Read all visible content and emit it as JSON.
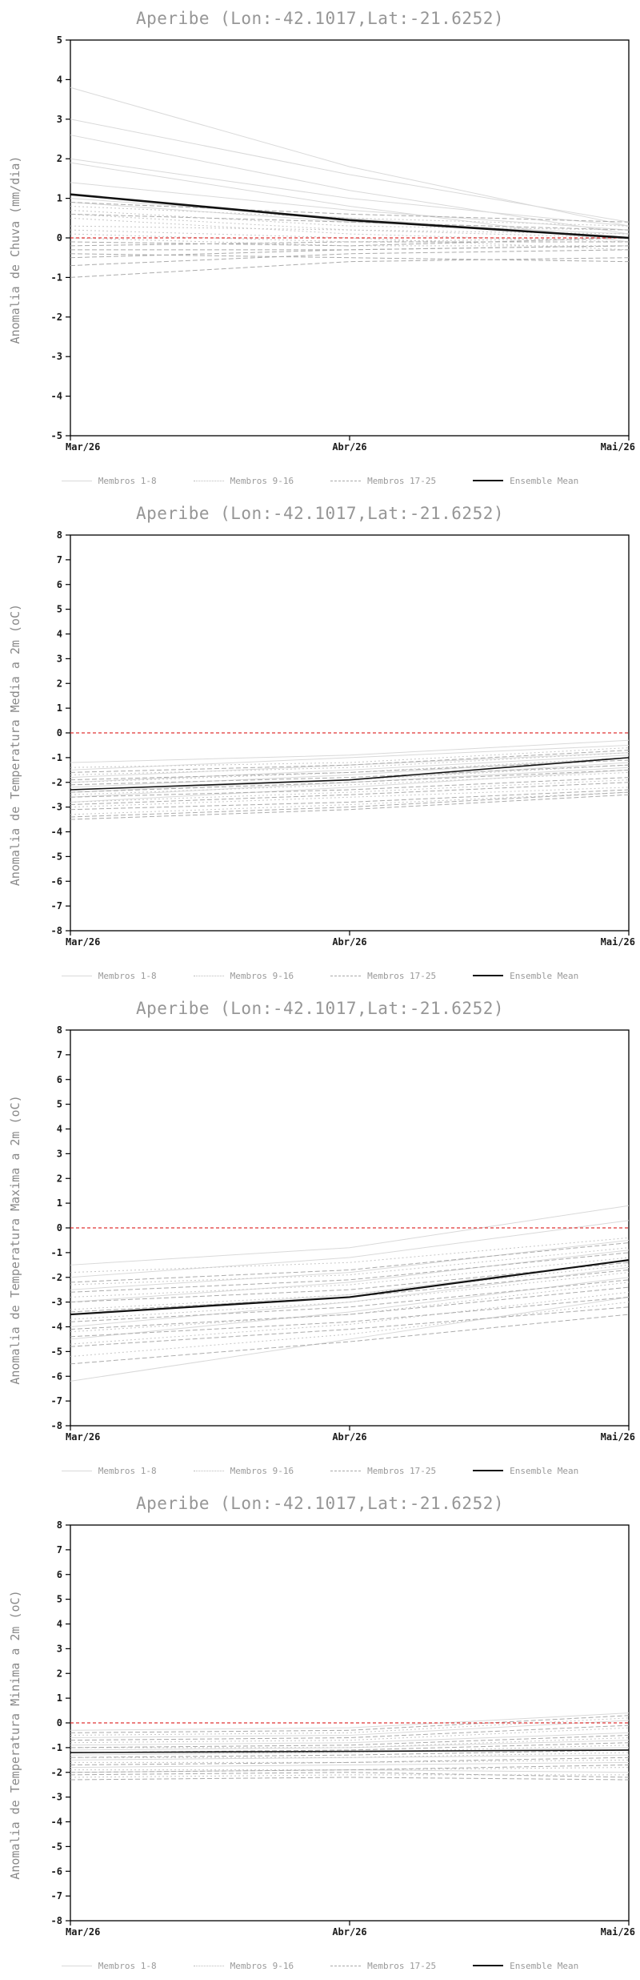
{
  "page": {
    "background": "#ffffff"
  },
  "legend": {
    "items": [
      {
        "label": "Membros 1-8",
        "style": "g1"
      },
      {
        "label": "Membros 9-16",
        "style": "g2"
      },
      {
        "label": "Membros 17-25",
        "style": "g3"
      },
      {
        "label": "Ensemble Mean",
        "style": "mean"
      }
    ]
  },
  "styles": {
    "g1": {
      "color": "#d9d9d9",
      "dash": "",
      "width": 1
    },
    "g2": {
      "color": "#c6c6c6",
      "dash": "2 3",
      "width": 1
    },
    "g3": {
      "color": "#ababab",
      "dash": "6 3",
      "width": 1
    },
    "mean": {
      "color": "#111111"
    },
    "zero": {
      "color": "#e03434",
      "dash": "4 3",
      "width": 1.3
    },
    "frame": "#000000",
    "title_color": "#969696",
    "ylabel_color": "#8a8a8a",
    "tick_color": "#1a1a1a",
    "legend_text": "#9a9a9a"
  },
  "chart_data": [
    {
      "type": "line",
      "title": "Aperibe (Lon:-42.1017,Lat:-21.6252)",
      "ylabel": "Anomalia de Chuva (mm/dia)",
      "ylim": [
        -5,
        5
      ],
      "yticks": [
        5,
        4,
        3,
        2,
        1,
        0,
        -1,
        -2,
        -3,
        -4,
        -5
      ],
      "x_labels": [
        "Mar/26",
        "Abr/26",
        "Mai/26"
      ],
      "zero_line": 0,
      "grid": false,
      "legend_position": "bottom",
      "mean_width": 2.6,
      "groups": [
        {
          "name": "Membros 1-8",
          "style": "g1",
          "members": [
            [
              3.8,
              1.8,
              0.3
            ],
            [
              3.0,
              1.6,
              0.4
            ],
            [
              2.6,
              1.2,
              0.1
            ],
            [
              2.0,
              1.0,
              0.3
            ],
            [
              1.9,
              0.8,
              -0.1
            ],
            [
              1.4,
              0.7,
              0.2
            ],
            [
              1.0,
              0.5,
              0.0
            ],
            [
              0.9,
              0.4,
              0.1
            ]
          ]
        },
        {
          "name": "Membros 9-16",
          "style": "g2",
          "members": [
            [
              0.8,
              0.5,
              0.3
            ],
            [
              0.7,
              0.3,
              0.2
            ],
            [
              0.6,
              0.2,
              0.0
            ],
            [
              0.5,
              0.1,
              -0.1
            ],
            [
              0.3,
              0.2,
              0.1
            ],
            [
              0.2,
              0.0,
              -0.3
            ],
            [
              0.1,
              -0.1,
              0.0
            ],
            [
              0.0,
              -0.2,
              -0.2
            ]
          ]
        },
        {
          "name": "Membros 17-25",
          "style": "g3",
          "members": [
            [
              0.9,
              0.6,
              0.4
            ],
            [
              0.6,
              0.4,
              0.2
            ],
            [
              -0.1,
              -0.2,
              0.0
            ],
            [
              -0.2,
              -0.1,
              -0.1
            ],
            [
              -0.3,
              -0.3,
              -0.2
            ],
            [
              -0.4,
              -0.5,
              -0.6
            ],
            [
              -0.5,
              -0.3,
              -0.2
            ],
            [
              -0.7,
              -0.4,
              -0.3
            ],
            [
              -1.0,
              -0.6,
              -0.5
            ]
          ]
        }
      ],
      "ensemble_mean": [
        1.1,
        0.45,
        0.0
      ]
    },
    {
      "type": "line",
      "title": "Aperibe (Lon:-42.1017,Lat:-21.6252)",
      "ylabel": "Anomalia de Temperatura Media a 2m (oC)",
      "ylim": [
        -8,
        8
      ],
      "yticks": [
        8,
        7,
        6,
        5,
        4,
        3,
        2,
        1,
        0,
        -1,
        -2,
        -3,
        -4,
        -5,
        -6,
        -7,
        -8
      ],
      "x_labels": [
        "Mar/26",
        "Abr/26",
        "Mai/26"
      ],
      "zero_line": 0,
      "grid": false,
      "legend_position": "bottom",
      "mean_width": 1.6,
      "groups": [
        {
          "name": "Membros 1-8",
          "style": "g1",
          "members": [
            [
              -1.2,
              -0.9,
              -0.3
            ],
            [
              -1.5,
              -1.0,
              -0.5
            ],
            [
              -1.8,
              -1.3,
              -0.8
            ],
            [
              -2.0,
              -1.5,
              -0.9
            ],
            [
              -2.2,
              -1.7,
              -1.0
            ],
            [
              -2.4,
              -1.9,
              -1.2
            ],
            [
              -2.6,
              -2.0,
              -1.4
            ],
            [
              -2.8,
              -2.2,
              -1.5
            ]
          ]
        },
        {
          "name": "Membros 9-16",
          "style": "g2",
          "members": [
            [
              -1.4,
              -1.2,
              -0.6
            ],
            [
              -1.7,
              -1.4,
              -0.8
            ],
            [
              -2.0,
              -1.6,
              -1.0
            ],
            [
              -2.3,
              -1.9,
              -1.3
            ],
            [
              -2.5,
              -2.1,
              -1.6
            ],
            [
              -2.8,
              -2.4,
              -1.9
            ],
            [
              -3.0,
              -2.6,
              -2.2
            ],
            [
              -3.3,
              -2.9,
              -2.4
            ]
          ]
        },
        {
          "name": "Membros 17-25",
          "style": "g3",
          "members": [
            [
              -1.6,
              -1.3,
              -0.7
            ],
            [
              -1.9,
              -1.6,
              -1.1
            ],
            [
              -2.1,
              -1.8,
              -1.3
            ],
            [
              -2.4,
              -2.0,
              -1.5
            ],
            [
              -2.6,
              -2.3,
              -1.8
            ],
            [
              -2.9,
              -2.5,
              -2.0
            ],
            [
              -3.1,
              -2.8,
              -2.3
            ],
            [
              -3.4,
              -3.0,
              -2.4
            ],
            [
              -3.5,
              -3.1,
              -2.5
            ]
          ]
        }
      ],
      "ensemble_mean": [
        -2.3,
        -1.9,
        -1.0
      ]
    },
    {
      "type": "line",
      "title": "Aperibe (Lon:-42.1017,Lat:-21.6252)",
      "ylabel": "Anomalia de Temperatura Maxima a 2m (oC)",
      "ylim": [
        -8,
        8
      ],
      "yticks": [
        8,
        7,
        6,
        5,
        4,
        3,
        2,
        1,
        0,
        -1,
        -2,
        -3,
        -4,
        -5,
        -6,
        -7,
        -8
      ],
      "x_labels": [
        "Mar/26",
        "Abr/26",
        "Mai/26"
      ],
      "zero_line": 0,
      "grid": false,
      "legend_position": "bottom",
      "mean_width": 2.2,
      "groups": [
        {
          "name": "Membros 1-8",
          "style": "g1",
          "members": [
            [
              -1.5,
              -0.8,
              0.9
            ],
            [
              -2.0,
              -1.2,
              0.3
            ],
            [
              -2.5,
              -1.8,
              -0.5
            ],
            [
              -3.0,
              -2.2,
              -0.9
            ],
            [
              -3.5,
              -2.7,
              -1.3
            ],
            [
              -4.0,
              -3.0,
              -1.6
            ],
            [
              -4.5,
              -3.4,
              -2.0
            ],
            [
              -6.2,
              -4.5,
              -2.8
            ]
          ]
        },
        {
          "name": "Membros 9-16",
          "style": "g2",
          "members": [
            [
              -1.8,
              -1.4,
              -0.4
            ],
            [
              -2.3,
              -1.9,
              -0.8
            ],
            [
              -2.8,
              -2.3,
              -1.2
            ],
            [
              -3.3,
              -2.7,
              -1.5
            ],
            [
              -3.7,
              -3.0,
              -1.8
            ],
            [
              -4.2,
              -3.5,
              -2.2
            ],
            [
              -4.7,
              -3.9,
              -2.6
            ],
            [
              -5.2,
              -4.3,
              -3.0
            ]
          ]
        },
        {
          "name": "Membros 17-25",
          "style": "g3",
          "members": [
            [
              -2.2,
              -1.7,
              -0.6
            ],
            [
              -2.6,
              -2.1,
              -1.0
            ],
            [
              -3.0,
              -2.5,
              -1.4
            ],
            [
              -3.4,
              -2.8,
              -1.7
            ],
            [
              -3.8,
              -3.2,
              -2.1
            ],
            [
              -4.1,
              -3.5,
              -2.4
            ],
            [
              -4.4,
              -3.8,
              -2.8
            ],
            [
              -4.8,
              -4.1,
              -3.2
            ],
            [
              -5.5,
              -4.6,
              -3.5
            ]
          ]
        }
      ],
      "ensemble_mean": [
        -3.5,
        -2.8,
        -1.3
      ]
    },
    {
      "type": "line",
      "title": "Aperibe (Lon:-42.1017,Lat:-21.6252)",
      "ylabel": "Anomalia de Temperatura Minima a 2m (oC)",
      "ylim": [
        -8,
        8
      ],
      "yticks": [
        8,
        7,
        6,
        5,
        4,
        3,
        2,
        1,
        0,
        -1,
        -2,
        -3,
        -4,
        -5,
        -6,
        -7,
        -8
      ],
      "x_labels": [
        "Mar/26",
        "Abr/26",
        "Mai/26"
      ],
      "zero_line": 0,
      "grid": false,
      "legend_position": "bottom",
      "mean_width": 1.6,
      "groups": [
        {
          "name": "Membros 1-8",
          "style": "g1",
          "members": [
            [
              -0.3,
              -0.2,
              0.4
            ],
            [
              -0.6,
              -0.5,
              0.1
            ],
            [
              -0.9,
              -0.8,
              -0.4
            ],
            [
              -1.1,
              -1.0,
              -0.7
            ],
            [
              -1.3,
              -1.2,
              -1.0
            ],
            [
              -1.5,
              -1.4,
              -1.3
            ],
            [
              -1.8,
              -1.7,
              -1.6
            ],
            [
              -2.0,
              -1.9,
              -2.0
            ]
          ]
        },
        {
          "name": "Membros 9-16",
          "style": "g2",
          "members": [
            [
              -0.5,
              -0.4,
              0.2
            ],
            [
              -0.8,
              -0.7,
              -0.2
            ],
            [
              -1.0,
              -1.0,
              -0.6
            ],
            [
              -1.2,
              -1.2,
              -0.9
            ],
            [
              -1.4,
              -1.4,
              -1.2
            ],
            [
              -1.6,
              -1.6,
              -1.5
            ],
            [
              -1.9,
              -1.9,
              -1.8
            ],
            [
              -2.2,
              -2.1,
              -2.1
            ]
          ]
        },
        {
          "name": "Membros 17-25",
          "style": "g3",
          "members": [
            [
              -0.4,
              -0.3,
              0.3
            ],
            [
              -0.7,
              -0.6,
              -0.1
            ],
            [
              -1.0,
              -0.9,
              -0.5
            ],
            [
              -1.2,
              -1.1,
              -0.8
            ],
            [
              -1.4,
              -1.3,
              -1.1
            ],
            [
              -1.7,
              -1.6,
              -1.4
            ],
            [
              -2.0,
              -1.9,
              -1.7
            ],
            [
              -2.1,
              -2.0,
              -2.2
            ],
            [
              -2.3,
              -2.2,
              -2.3
            ]
          ]
        }
      ],
      "ensemble_mean": [
        -1.2,
        -1.15,
        -1.1
      ]
    }
  ]
}
